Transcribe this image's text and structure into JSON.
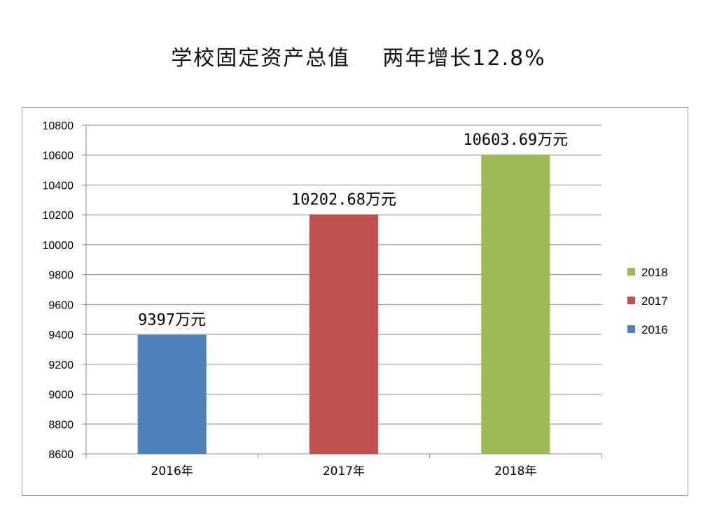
{
  "title": "学校固定资产总值    两年增长12.8%",
  "chart_data": {
    "type": "bar",
    "categories": [
      "2016年",
      "2017年",
      "2018年"
    ],
    "values": [
      9397,
      10202.68,
      10603.69
    ],
    "data_labels": [
      "9397万元",
      "10202.68万元",
      "10603.69万元"
    ],
    "colors": [
      "#4f81bd",
      "#c0504d",
      "#9bbb59"
    ],
    "ylim": [
      8600,
      10800
    ],
    "yticks": [
      8600,
      8800,
      9000,
      9200,
      9400,
      9600,
      9800,
      10000,
      10200,
      10400,
      10600,
      10800
    ],
    "grid": true,
    "legend": {
      "position": "right",
      "entries": [
        {
          "label": "2018",
          "color": "#9bbb59"
        },
        {
          "label": "2017",
          "color": "#c0504d"
        },
        {
          "label": "2016",
          "color": "#4f81bd"
        }
      ]
    }
  }
}
